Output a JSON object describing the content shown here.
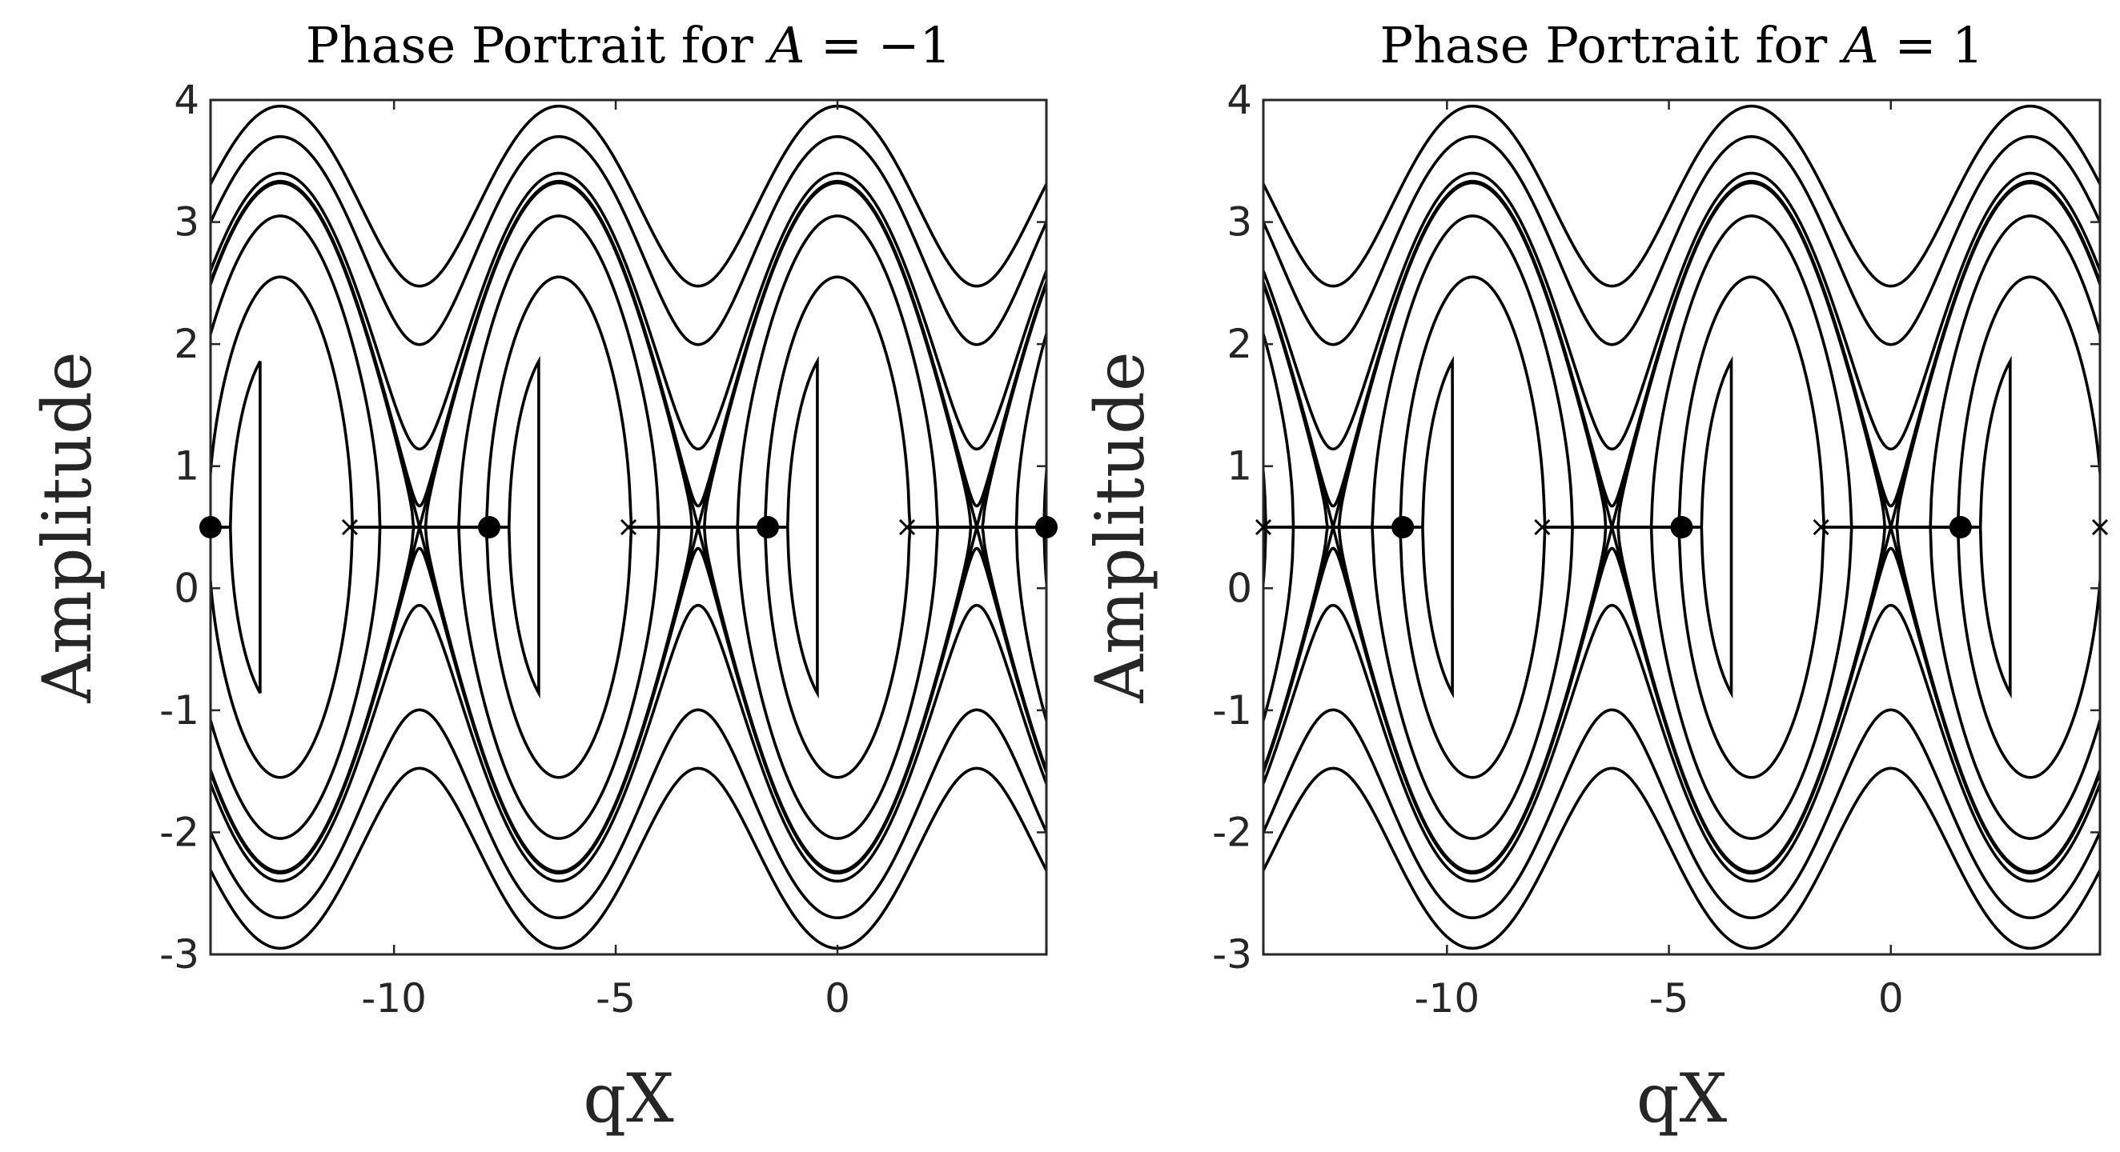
{
  "chart_data": [
    {
      "type": "line",
      "title_prefix": "Phase Portrait for ",
      "title_var": "A",
      "title_suffix": " = −1",
      "A": -1,
      "xlabel": "qX",
      "ylabel": "Amplitude",
      "xlim": [
        -14.137,
        4.712
      ],
      "ylim": [
        -3,
        4
      ],
      "xticks": [
        -10,
        -5,
        0
      ],
      "xtick_labels": [
        "-10",
        "-5",
        "0"
      ],
      "yticks": [
        -3,
        -2,
        -1,
        0,
        1,
        2,
        3,
        4
      ],
      "ytick_labels": [
        "-3",
        "-2",
        "-1",
        "0",
        "1",
        "2",
        "3",
        "4"
      ],
      "grid": false,
      "equilibria": {
        "centers_x": [
          -14.137,
          -7.854,
          -1.571,
          4.712
        ],
        "saddles_x": [
          -10.996,
          -4.712,
          1.571
        ],
        "y": 0.5
      },
      "separatrix": {
        "y_min": -1.5,
        "y_max": 2.5
      },
      "closed_orbits_half_height": [
        0.55,
        1.5
      ],
      "upper_open_orbits_crest_y": [
        2.55,
        3.05,
        3.4,
        3.7,
        3.95
      ],
      "lower_open_orbits_trough_y": [
        -1.55,
        -2.05,
        -2.4,
        -2.7,
        -2.95
      ]
    },
    {
      "type": "line",
      "title_prefix": "Phase Portrait for ",
      "title_var": "A",
      "title_suffix": " = 1",
      "A": 1,
      "xlabel": "qX",
      "ylabel": "Amplitude",
      "xlim": [
        -14.137,
        4.712
      ],
      "ylim": [
        -3,
        4
      ],
      "xticks": [
        -10,
        -5,
        0
      ],
      "xtick_labels": [
        "-10",
        "-5",
        "0"
      ],
      "yticks": [
        -3,
        -2,
        -1,
        0,
        1,
        2,
        3,
        4
      ],
      "ytick_labels": [
        "-3",
        "-2",
        "-1",
        "0",
        "1",
        "2",
        "3",
        "4"
      ],
      "grid": false,
      "equilibria": {
        "centers_x": [
          -10.996,
          -4.712,
          1.571
        ],
        "saddles_x": [
          -14.137,
          -7.854,
          -1.571,
          4.712
        ],
        "y": 0.5
      },
      "separatrix": {
        "y_min": -1.5,
        "y_max": 2.5
      },
      "closed_orbits_half_height": [
        0.55,
        1.5
      ],
      "upper_open_orbits_crest_y": [
        2.55,
        3.05,
        3.4,
        3.7,
        3.95
      ],
      "lower_open_orbits_trough_y": [
        -1.55,
        -2.05,
        -2.4,
        -2.7,
        -2.95
      ]
    }
  ]
}
